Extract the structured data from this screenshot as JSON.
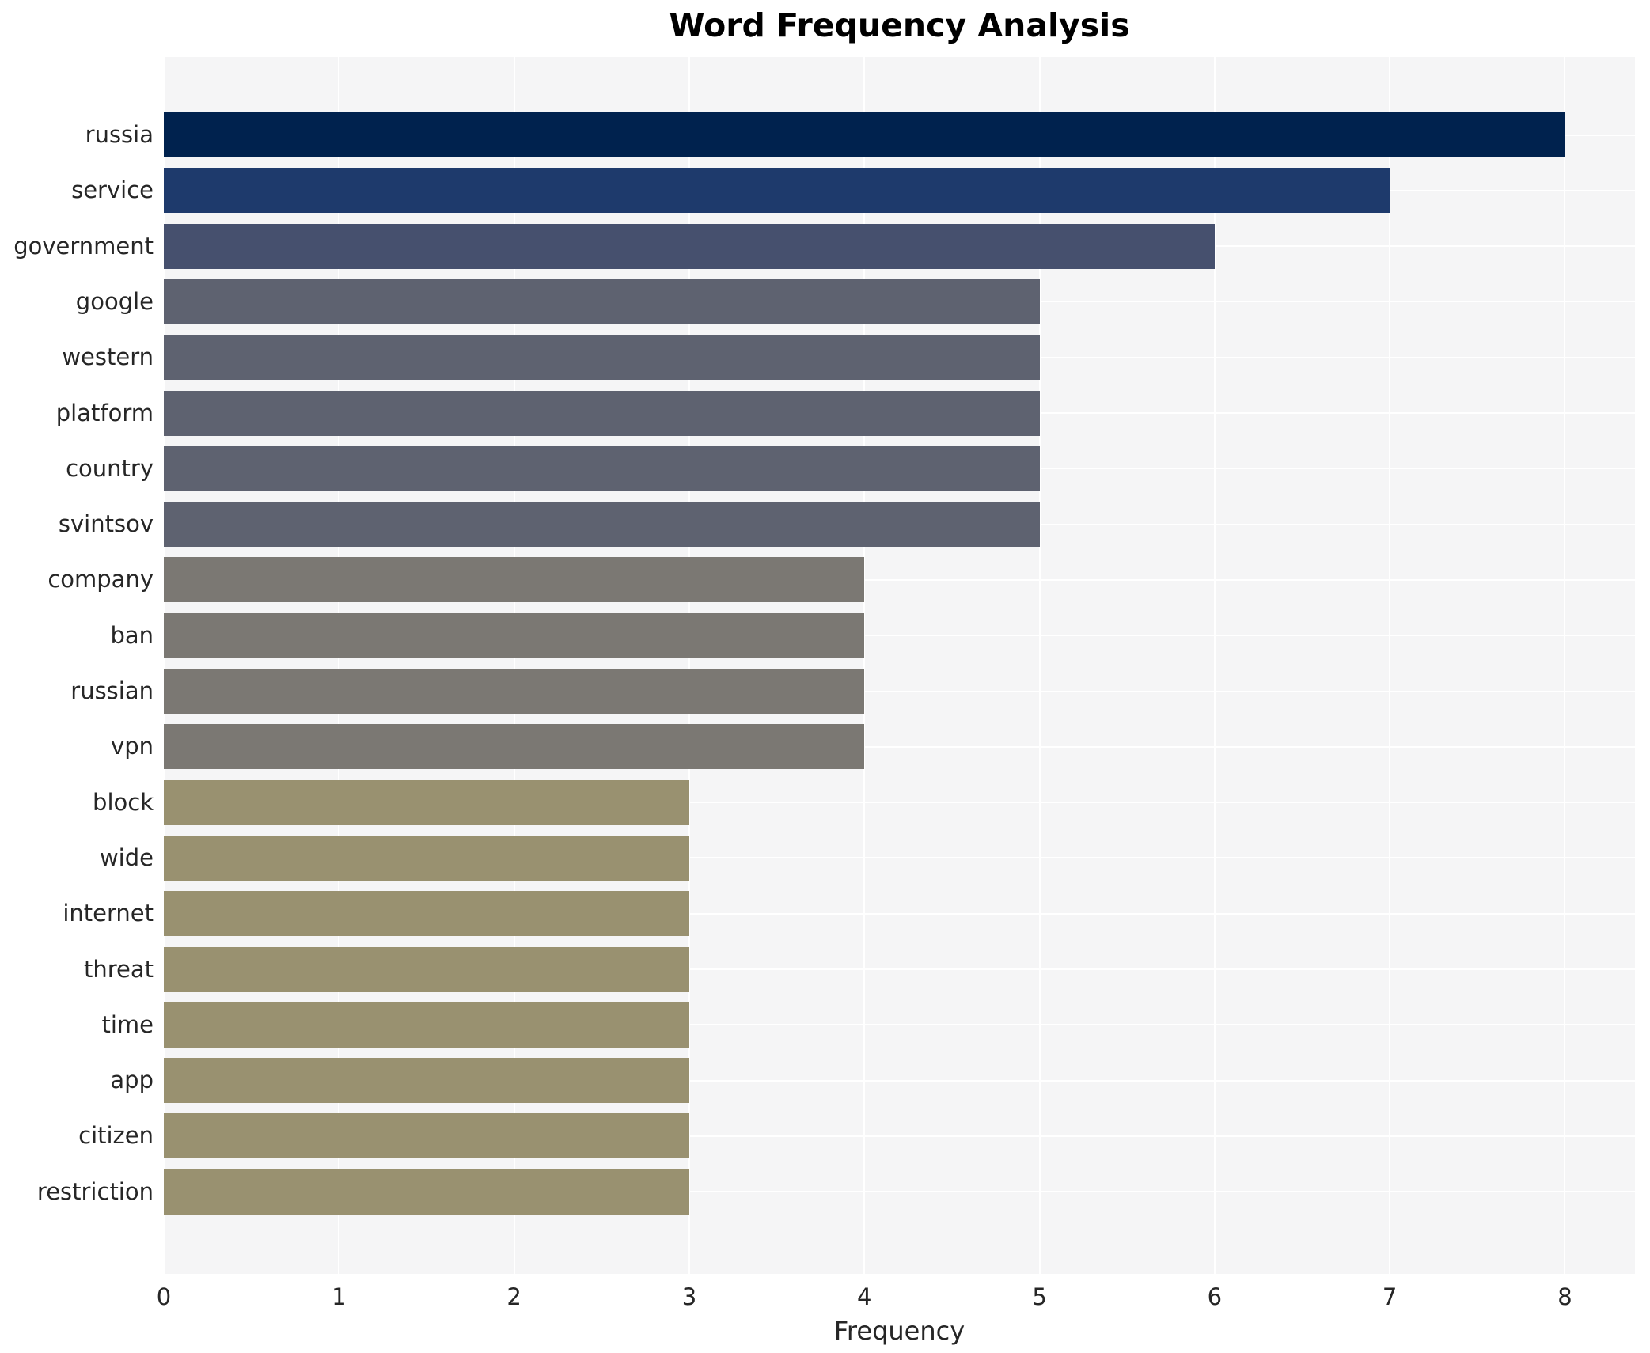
{
  "chart_data": {
    "type": "bar",
    "orientation": "horizontal",
    "title": "Word Frequency Analysis",
    "xlabel": "Frequency",
    "ylabel": "",
    "categories": [
      "russia",
      "service",
      "government",
      "google",
      "western",
      "platform",
      "country",
      "svintsov",
      "company",
      "ban",
      "russian",
      "vpn",
      "block",
      "wide",
      "internet",
      "threat",
      "time",
      "app",
      "citizen",
      "restriction"
    ],
    "values": [
      8,
      7,
      6,
      5,
      5,
      5,
      5,
      5,
      4,
      4,
      4,
      4,
      3,
      3,
      3,
      3,
      3,
      3,
      3,
      3
    ],
    "bar_colors": [
      "#00224e",
      "#1e3a6c",
      "#46506e",
      "#5e6270",
      "#5e6270",
      "#5e6270",
      "#5e6270",
      "#5e6270",
      "#7b7873",
      "#7b7873",
      "#7b7873",
      "#7b7873",
      "#999170",
      "#999170",
      "#999170",
      "#999170",
      "#999170",
      "#999170",
      "#999170",
      "#999170"
    ],
    "x_ticks": [
      "0",
      "1",
      "2",
      "3",
      "4",
      "5",
      "6",
      "7",
      "8"
    ],
    "xlim": [
      0,
      8.4
    ],
    "grid": true,
    "legend": "none",
    "plot_background": "#f5f5f6",
    "grid_color": "#ffffff",
    "text_color": "#262626",
    "title_color": "#000000"
  }
}
